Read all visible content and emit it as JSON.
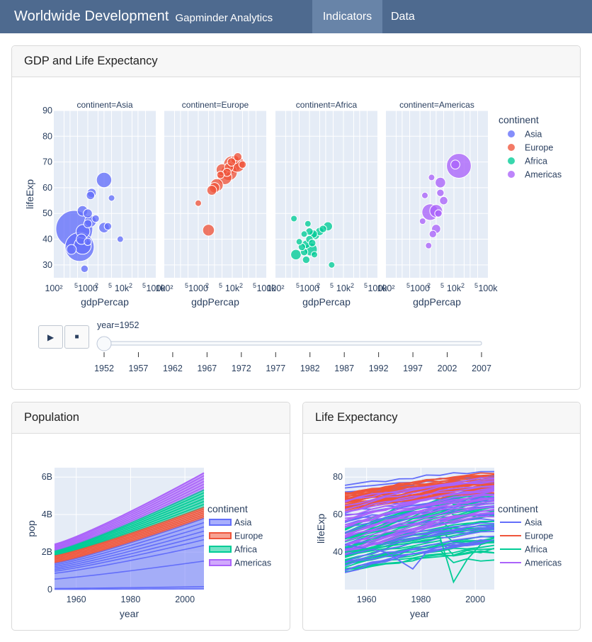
{
  "navbar": {
    "brand": "Worldwide Development",
    "subtitle": "Gapminder Analytics",
    "tabs": [
      {
        "label": "Indicators",
        "active": true
      },
      {
        "label": "Data",
        "active": false
      }
    ]
  },
  "gdp_card": {
    "title": "GDP and Life Expectancy",
    "animation": {
      "play_icon": "play-icon",
      "stop_icon": "stop-icon",
      "play_glyph": "▶",
      "stop_glyph": "■",
      "current_label": "year=1952",
      "current_year": 1952,
      "ticks": [
        "1952",
        "1957",
        "1962",
        "1967",
        "1972",
        "1977",
        "1982",
        "1987",
        "1992",
        "1997",
        "2002",
        "2007"
      ]
    }
  },
  "population_card": {
    "title": "Population"
  },
  "life_card": {
    "title": "Life Expectancy"
  },
  "colors": {
    "Asia": "#636efa",
    "Europe": "#ef553b",
    "Africa": "#00cc96",
    "Americas": "#ab63fa",
    "plot_bg": "#e5ecf6",
    "navbar": "#4e6a8f",
    "navbar_active": "#6884a8"
  },
  "chart_data": [
    {
      "type": "scatter",
      "facet_col": "continent",
      "facets": [
        {
          "title": "continent=Asia",
          "continent": "Asia"
        },
        {
          "title": "continent=Europe",
          "continent": "Europe"
        },
        {
          "title": "continent=Africa",
          "continent": "Africa"
        },
        {
          "title": "continent=Americas",
          "continent": "Americas"
        }
      ],
      "xlabel": "gdpPercap",
      "ylabel": "lifeExp",
      "xscale": "log",
      "xlim": [
        100,
        100000
      ],
      "ylim": [
        25,
        90
      ],
      "x_tick_labels": [
        "100²",
        "5",
        "1000",
        "2",
        "5",
        "10k",
        "2",
        "5",
        "100k"
      ],
      "y_ticks": [
        30,
        40,
        50,
        60,
        70,
        80,
        90
      ],
      "legend_title": "continent",
      "legend": [
        "Asia",
        "Europe",
        "Africa",
        "Americas"
      ],
      "legend_position": "right",
      "points": {
        "Asia": [
          {
            "x": 400,
            "y": 44,
            "size": 1
          },
          {
            "x": 575,
            "y": 37,
            "size": 0.62
          },
          {
            "x": 700,
            "y": 37.5,
            "size": 0.22
          },
          {
            "x": 3000,
            "y": 63,
            "size": 0.17
          },
          {
            "x": 720,
            "y": 43,
            "size": 0.14
          },
          {
            "x": 1200,
            "y": 47,
            "size": 0.1
          },
          {
            "x": 650,
            "y": 40,
            "size": 0.08
          },
          {
            "x": 330,
            "y": 36,
            "size": 0.07
          },
          {
            "x": 3000,
            "y": 44.5,
            "size": 0.08
          },
          {
            "x": 700,
            "y": 51,
            "size": 0.08
          },
          {
            "x": 1000,
            "y": 50,
            "size": 0.06
          },
          {
            "x": 1300,
            "y": 58,
            "size": 0.06
          },
          {
            "x": 1200,
            "y": 57,
            "size": 0.05
          },
          {
            "x": 1000,
            "y": 46,
            "size": 0.05
          },
          {
            "x": 1700,
            "y": 48,
            "size": 0.04
          },
          {
            "x": 800,
            "y": 28.5,
            "size": 0.04
          },
          {
            "x": 1000,
            "y": 39,
            "size": 0.04
          },
          {
            "x": 3900,
            "y": 45,
            "size": 0.04
          },
          {
            "x": 9000,
            "y": 40,
            "size": 0.03
          },
          {
            "x": 5000,
            "y": 56,
            "size": 0.03
          }
        ],
        "Europe": [
          {
            "x": 10000,
            "y": 69,
            "size": 0.22
          },
          {
            "x": 8000,
            "y": 66,
            "size": 0.2
          },
          {
            "x": 6000,
            "y": 64,
            "size": 0.15
          },
          {
            "x": 14000,
            "y": 69,
            "size": 0.17
          },
          {
            "x": 3500,
            "y": 61,
            "size": 0.12
          },
          {
            "x": 5000,
            "y": 67,
            "size": 0.1
          },
          {
            "x": 2000,
            "y": 43.5,
            "size": 0.1
          },
          {
            "x": 3000,
            "y": 60,
            "size": 0.08
          },
          {
            "x": 2500,
            "y": 59,
            "size": 0.07
          },
          {
            "x": 8000,
            "y": 68,
            "size": 0.06
          },
          {
            "x": 12000,
            "y": 71,
            "size": 0.05
          },
          {
            "x": 14500,
            "y": 72,
            "size": 0.05
          },
          {
            "x": 7000,
            "y": 66,
            "size": 0.05
          },
          {
            "x": 20000,
            "y": 69,
            "size": 0.04
          },
          {
            "x": 1000,
            "y": 54,
            "size": 0.03
          },
          {
            "x": 4500,
            "y": 65,
            "size": 0.04
          },
          {
            "x": 9500,
            "y": 70,
            "size": 0.05
          }
        ],
        "Africa": [
          {
            "x": 1100,
            "y": 36,
            "size": 0.12
          },
          {
            "x": 400,
            "y": 34,
            "size": 0.08
          },
          {
            "x": 3500,
            "y": 45,
            "size": 0.06
          },
          {
            "x": 1500,
            "y": 41.5,
            "size": 0.05
          },
          {
            "x": 2000,
            "y": 43,
            "size": 0.05
          },
          {
            "x": 1300,
            "y": 42,
            "size": 0.05
          },
          {
            "x": 800,
            "y": 38,
            "size": 0.05
          },
          {
            "x": 1000,
            "y": 40,
            "size": 0.04
          },
          {
            "x": 2500,
            "y": 44,
            "size": 0.04
          },
          {
            "x": 1000,
            "y": 43,
            "size": 0.04
          },
          {
            "x": 700,
            "y": 35,
            "size": 0.04
          },
          {
            "x": 600,
            "y": 37,
            "size": 0.04
          },
          {
            "x": 1200,
            "y": 38.5,
            "size": 0.04
          },
          {
            "x": 800,
            "y": 32,
            "size": 0.04
          },
          {
            "x": 900,
            "y": 46,
            "size": 0.03
          },
          {
            "x": 500,
            "y": 39,
            "size": 0.03
          },
          {
            "x": 4500,
            "y": 30,
            "size": 0.03
          },
          {
            "x": 350,
            "y": 48,
            "size": 0.03
          },
          {
            "x": 1400,
            "y": 34,
            "size": 0.03
          },
          {
            "x": 700,
            "y": 42,
            "size": 0.03
          }
        ],
        "Americas": [
          {
            "x": 14000,
            "y": 68.5,
            "size": 0.45
          },
          {
            "x": 2000,
            "y": 50.5,
            "size": 0.2
          },
          {
            "x": 3000,
            "y": 51,
            "size": 0.12
          },
          {
            "x": 4000,
            "y": 62,
            "size": 0.08
          },
          {
            "x": 3000,
            "y": 44,
            "size": 0.06
          },
          {
            "x": 5000,
            "y": 55,
            "size": 0.05
          },
          {
            "x": 4000,
            "y": 58,
            "size": 0.04
          },
          {
            "x": 2400,
            "y": 42,
            "size": 0.04
          },
          {
            "x": 11000,
            "y": 69,
            "size": 0.06
          },
          {
            "x": 3500,
            "y": 50,
            "size": 0.04
          },
          {
            "x": 1400,
            "y": 57,
            "size": 0.03
          },
          {
            "x": 1800,
            "y": 37.5,
            "size": 0.03
          },
          {
            "x": 2200,
            "y": 64,
            "size": 0.03
          },
          {
            "x": 1200,
            "y": 47,
            "size": 0.03
          }
        ]
      }
    },
    {
      "type": "area",
      "xlabel": "year",
      "ylabel": "pop",
      "xlim": [
        1952,
        2007
      ],
      "ylim": [
        0,
        6500000000
      ],
      "x_ticks": [
        1960,
        1980,
        2000
      ],
      "y_ticks": [
        0,
        2000000000,
        4000000000,
        6000000000
      ],
      "y_tick_labels": [
        "0",
        "2B",
        "4B",
        "6B"
      ],
      "legend_title": "continent",
      "legend_position": "right",
      "x": [
        1952,
        2007
      ],
      "series": [
        {
          "name": "Asia",
          "values": [
            1400000000,
            3800000000
          ]
        },
        {
          "name": "Europe",
          "values": [
            420000000,
            590000000
          ]
        },
        {
          "name": "Africa",
          "values": [
            240000000,
            930000000
          ]
        },
        {
          "name": "Americas",
          "values": [
            350000000,
            900000000
          ]
        }
      ]
    },
    {
      "type": "line",
      "xlabel": "year",
      "ylabel": "lifeExp",
      "xlim": [
        1952,
        2007
      ],
      "ylim": [
        20,
        85
      ],
      "x_ticks": [
        1960,
        1980,
        2000
      ],
      "y_ticks": [
        40,
        60,
        80
      ],
      "legend_title": "continent",
      "legend_position": "right",
      "series": [
        {
          "name": "Asia",
          "start": [
            28,
            75
          ],
          "end": [
            44,
            82
          ]
        },
        {
          "name": "Europe",
          "start": [
            62,
            72
          ],
          "end": [
            72,
            81
          ]
        },
        {
          "name": "Africa",
          "start": [
            30,
            52
          ],
          "end": [
            40,
            76
          ]
        },
        {
          "name": "Americas",
          "start": [
            38,
            68
          ],
          "end": [
            60,
            80
          ]
        }
      ]
    }
  ]
}
